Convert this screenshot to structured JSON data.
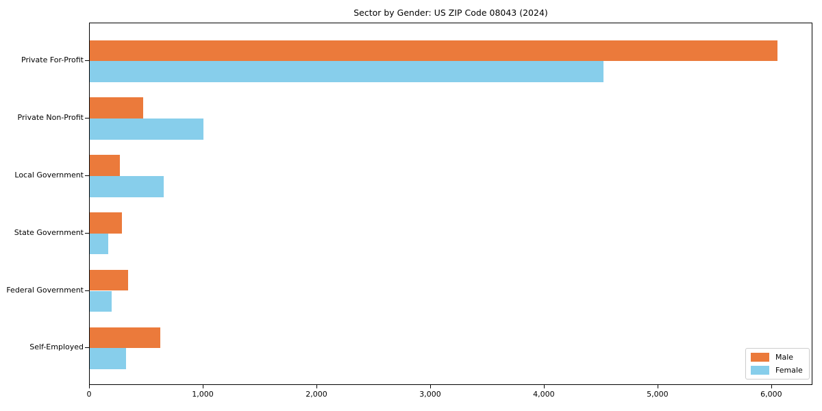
{
  "chart_data": {
    "type": "bar",
    "orientation": "horizontal",
    "title": "Sector by Gender: US ZIP Code 08043 (2024)",
    "categories": [
      "Private For-Profit",
      "Private Non-Profit",
      "Local Government",
      "State Government",
      "Federal Government",
      "Self-Employed"
    ],
    "series": [
      {
        "name": "Male",
        "color": "#eb7a3b",
        "values": [
          6050,
          470,
          265,
          285,
          340,
          620
        ]
      },
      {
        "name": "Female",
        "color": "#87ceeb",
        "values": [
          4520,
          1000,
          650,
          160,
          195,
          320
        ]
      }
    ],
    "xlabel": "",
    "ylabel": "",
    "xlim": [
      0,
      6350
    ],
    "xticks": [
      0,
      1000,
      2000,
      3000,
      4000,
      5000,
      6000
    ],
    "xtick_labels": [
      "0",
      "1,000",
      "2,000",
      "3,000",
      "4,000",
      "5,000",
      "6,000"
    ],
    "grid": false,
    "legend": {
      "position": "lower-right",
      "entries": [
        "Male",
        "Female"
      ]
    }
  }
}
